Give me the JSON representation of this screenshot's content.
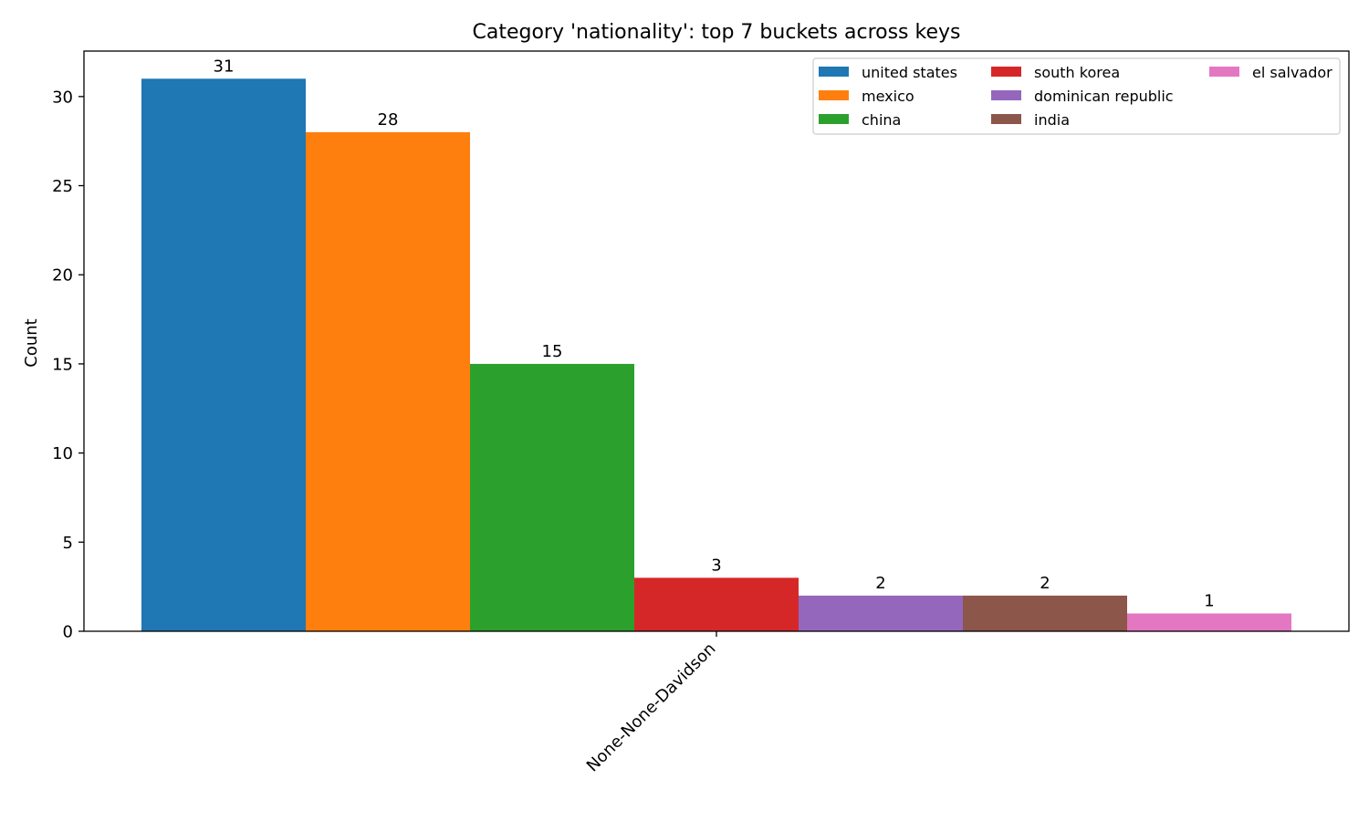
{
  "chart_data": {
    "type": "bar",
    "title": "Category 'nationality': top 7 buckets across keys",
    "xlabel": "",
    "ylabel": "Count",
    "categories": [
      "None-None-Davidson"
    ],
    "ylim": [
      0,
      32.55
    ],
    "yticks": [
      0,
      5,
      10,
      15,
      20,
      25,
      30
    ],
    "grid": false,
    "legend_position": "top-right",
    "legend_columns": 3,
    "series": [
      {
        "name": "united states",
        "values": [
          31
        ],
        "color": "#1f77b4"
      },
      {
        "name": "mexico",
        "values": [
          28
        ],
        "color": "#ff7f0e"
      },
      {
        "name": "china",
        "values": [
          15
        ],
        "color": "#2ca02c"
      },
      {
        "name": "south korea",
        "values": [
          3
        ],
        "color": "#d62728"
      },
      {
        "name": "dominican republic",
        "values": [
          2
        ],
        "color": "#9467bd"
      },
      {
        "name": "india",
        "values": [
          2
        ],
        "color": "#8c564b"
      },
      {
        "name": "el salvador",
        "values": [
          1
        ],
        "color": "#e377c2"
      }
    ]
  }
}
